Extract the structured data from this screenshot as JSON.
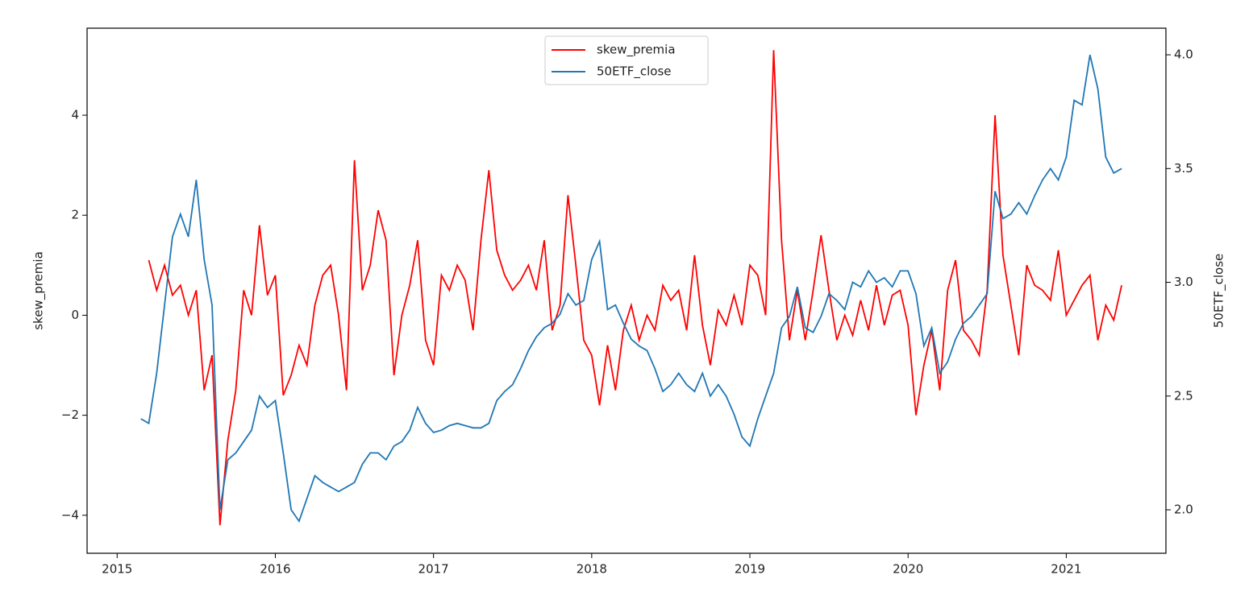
{
  "chart_data": {
    "type": "line",
    "x": [
      2015.15,
      2015.2,
      2015.25,
      2015.3,
      2015.35,
      2015.4,
      2015.45,
      2015.5,
      2015.55,
      2015.6,
      2015.65,
      2015.7,
      2015.75,
      2015.8,
      2015.85,
      2015.9,
      2015.95,
      2016.0,
      2016.05,
      2016.1,
      2016.15,
      2016.2,
      2016.25,
      2016.3,
      2016.35,
      2016.4,
      2016.45,
      2016.5,
      2016.55,
      2016.6,
      2016.65,
      2016.7,
      2016.75,
      2016.8,
      2016.85,
      2016.9,
      2016.95,
      2017.0,
      2017.05,
      2017.1,
      2017.15,
      2017.2,
      2017.25,
      2017.3,
      2017.35,
      2017.4,
      2017.45,
      2017.5,
      2017.55,
      2017.6,
      2017.65,
      2017.7,
      2017.75,
      2017.8,
      2017.85,
      2017.9,
      2017.95,
      2018.0,
      2018.05,
      2018.1,
      2018.15,
      2018.2,
      2018.25,
      2018.3,
      2018.35,
      2018.4,
      2018.45,
      2018.5,
      2018.55,
      2018.6,
      2018.65,
      2018.7,
      2018.75,
      2018.8,
      2018.85,
      2018.9,
      2018.95,
      2019.0,
      2019.05,
      2019.1,
      2019.15,
      2019.2,
      2019.25,
      2019.3,
      2019.35,
      2019.4,
      2019.45,
      2019.5,
      2019.55,
      2019.6,
      2019.65,
      2019.7,
      2019.75,
      2019.8,
      2019.85,
      2019.9,
      2019.95,
      2020.0,
      2020.05,
      2020.1,
      2020.15,
      2020.2,
      2020.25,
      2020.3,
      2020.35,
      2020.4,
      2020.45,
      2020.5,
      2020.55,
      2020.6,
      2020.65,
      2020.7,
      2020.75,
      2020.8,
      2020.85,
      2020.9,
      2020.95,
      2021.0,
      2021.05,
      2021.1,
      2021.15,
      2021.2,
      2021.25,
      2021.3,
      2021.35
    ],
    "series": [
      {
        "name": "skew_premia",
        "color": "#ff0000",
        "values": [
          null,
          1.1,
          0.5,
          1.0,
          0.4,
          0.6,
          0.0,
          0.5,
          -1.5,
          -0.8,
          -4.2,
          -2.5,
          -1.5,
          0.5,
          0.0,
          1.8,
          0.4,
          0.8,
          -1.6,
          -1.2,
          -0.6,
          -1.0,
          0.2,
          0.8,
          1.0,
          0.0,
          -1.5,
          3.1,
          0.5,
          1.0,
          2.1,
          1.5,
          -1.2,
          0.0,
          0.6,
          1.5,
          -0.5,
          -1.0,
          0.8,
          0.5,
          1.0,
          0.7,
          -0.3,
          1.5,
          2.9,
          1.3,
          0.8,
          0.5,
          0.7,
          1.0,
          0.5,
          1.5,
          -0.3,
          0.2,
          2.4,
          1.0,
          -0.5,
          -0.8,
          -1.8,
          -0.6,
          -1.5,
          -0.3,
          0.2,
          -0.5,
          0.0,
          -0.3,
          0.6,
          0.3,
          0.5,
          -0.3,
          1.2,
          -0.2,
          -1.0,
          0.1,
          -0.2,
          0.4,
          -0.2,
          1.0,
          0.8,
          0.0,
          5.3,
          1.5,
          -0.5,
          0.5,
          -0.5,
          0.5,
          1.6,
          0.5,
          -0.5,
          0.0,
          -0.4,
          0.3,
          -0.3,
          0.6,
          -0.2,
          0.4,
          0.5,
          -0.2,
          -2.0,
          -1.0,
          -0.3,
          -1.5,
          0.5,
          1.1,
          -0.3,
          -0.5,
          -0.8,
          0.5,
          4.0,
          1.2,
          0.2,
          -0.8,
          1.0,
          0.6,
          0.5,
          0.3,
          1.3,
          0.0,
          0.3,
          0.6,
          0.8,
          -0.5,
          0.2,
          -0.1,
          0.6
        ]
      },
      {
        "name": "50ETF_close",
        "color": "#1f77b4",
        "axis": "y2",
        "values": [
          2.4,
          2.38,
          2.6,
          2.9,
          3.2,
          3.3,
          3.2,
          3.45,
          3.1,
          2.9,
          2.0,
          2.22,
          2.25,
          2.3,
          2.35,
          2.5,
          2.45,
          2.48,
          2.25,
          2.0,
          1.95,
          2.05,
          2.15,
          2.12,
          2.1,
          2.08,
          2.1,
          2.12,
          2.2,
          2.25,
          2.25,
          2.22,
          2.28,
          2.3,
          2.35,
          2.45,
          2.38,
          2.34,
          2.35,
          2.37,
          2.38,
          2.37,
          2.36,
          2.36,
          2.38,
          2.48,
          2.52,
          2.55,
          2.62,
          2.7,
          2.76,
          2.8,
          2.82,
          2.86,
          2.95,
          2.9,
          2.92,
          3.1,
          3.18,
          2.88,
          2.9,
          2.82,
          2.75,
          2.72,
          2.7,
          2.62,
          2.52,
          2.55,
          2.6,
          2.55,
          2.52,
          2.6,
          2.5,
          2.55,
          2.5,
          2.42,
          2.32,
          2.28,
          2.4,
          2.5,
          2.6,
          2.8,
          2.85,
          2.98,
          2.8,
          2.78,
          2.85,
          2.95,
          2.92,
          2.88,
          3.0,
          2.98,
          3.05,
          3.0,
          3.02,
          2.98,
          3.05,
          3.05,
          2.95,
          2.72,
          2.8,
          2.6,
          2.65,
          2.75,
          2.82,
          2.85,
          2.9,
          2.95,
          3.4,
          3.28,
          3.3,
          3.35,
          3.3,
          3.38,
          3.45,
          3.5,
          3.45,
          3.55,
          3.8,
          3.78,
          4.0,
          3.85,
          3.55,
          3.48,
          3.5
        ]
      }
    ],
    "ylabel": "skew_premia",
    "y2label": "50ETF_close",
    "xlim": [
      2014.81,
      2021.63
    ],
    "xticks": [
      2015,
      2016,
      2017,
      2018,
      2019,
      2020,
      2021
    ],
    "ylim": [
      -4.76,
      5.74
    ],
    "yticks": [
      {
        "value": -4,
        "label": "−4"
      },
      {
        "value": -2,
        "label": "−2"
      },
      0,
      2,
      4
    ],
    "y2lim": [
      1.809,
      4.117
    ],
    "y2ticks": [
      {
        "value": 2,
        "label": "2.0"
      },
      {
        "value": 2.5,
        "label": "2.5"
      },
      {
        "value": 3,
        "label": "3.0"
      },
      {
        "value": 3.5,
        "label": "3.5"
      },
      {
        "value": 4,
        "label": "4.0"
      }
    ],
    "legend": "upper center",
    "grid": false
  }
}
